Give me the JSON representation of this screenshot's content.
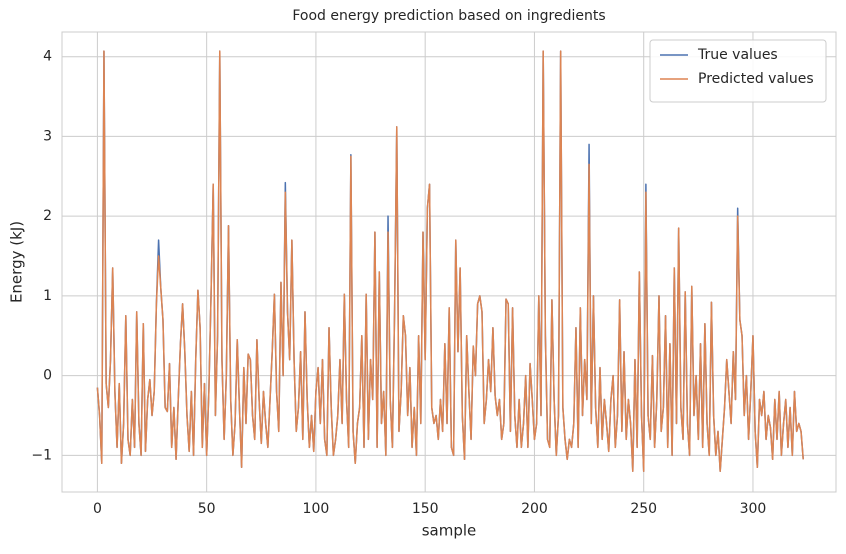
{
  "chart_data": {
    "type": "line",
    "title": "Food energy prediction based on ingredients",
    "x_label": "sample",
    "y_label": "Energy (kJ)",
    "xlim": [
      -16.2,
      338
    ],
    "ylim": [
      -1.46,
      4.31
    ],
    "xticks": [
      0,
      50,
      100,
      150,
      200,
      250,
      300
    ],
    "yticks": [
      {
        "value": -1,
        "label": "−1"
      },
      0,
      1,
      2,
      3,
      4
    ],
    "grid": true,
    "legend": "upper right",
    "x": [
      0,
      1,
      2,
      3,
      4,
      5,
      6,
      7,
      8,
      9,
      10,
      11,
      12,
      13,
      14,
      15,
      16,
      17,
      18,
      19,
      20,
      21,
      22,
      23,
      24,
      25,
      26,
      27,
      28,
      29,
      30,
      31,
      32,
      33,
      34,
      35,
      36,
      37,
      38,
      39,
      40,
      41,
      42,
      43,
      44,
      45,
      46,
      47,
      48,
      49,
      50,
      51,
      52,
      53,
      54,
      55,
      56,
      57,
      58,
      59,
      60,
      61,
      62,
      63,
      64,
      65,
      66,
      67,
      68,
      69,
      70,
      71,
      72,
      73,
      74,
      75,
      76,
      77,
      78,
      79,
      80,
      81,
      82,
      83,
      84,
      85,
      86,
      87,
      88,
      89,
      90,
      91,
      92,
      93,
      94,
      95,
      96,
      97,
      98,
      99,
      100,
      101,
      102,
      103,
      104,
      105,
      106,
      107,
      108,
      109,
      110,
      111,
      112,
      113,
      114,
      115,
      116,
      117,
      118,
      119,
      120,
      121,
      122,
      123,
      124,
      125,
      126,
      127,
      128,
      129,
      130,
      131,
      132,
      133,
      134,
      135,
      136,
      137,
      138,
      139,
      140,
      141,
      142,
      143,
      144,
      145,
      146,
      147,
      148,
      149,
      150,
      151,
      152,
      153,
      154,
      155,
      156,
      157,
      158,
      159,
      160,
      161,
      162,
      163,
      164,
      165,
      166,
      167,
      168,
      169,
      170,
      171,
      172,
      173,
      174,
      175,
      176,
      177,
      178,
      179,
      180,
      181,
      182,
      183,
      184,
      185,
      186,
      187,
      188,
      189,
      190,
      191,
      192,
      193,
      194,
      195,
      196,
      197,
      198,
      199,
      200,
      201,
      202,
      203,
      204,
      205,
      206,
      207,
      208,
      209,
      210,
      211,
      212,
      213,
      214,
      215,
      216,
      217,
      218,
      219,
      220,
      221,
      222,
      223,
      224,
      225,
      226,
      227,
      228,
      229,
      230,
      231,
      232,
      233,
      234,
      235,
      236,
      237,
      238,
      239,
      240,
      241,
      242,
      243,
      244,
      245,
      246,
      247,
      248,
      249,
      250,
      251,
      252,
      253,
      254,
      255,
      256,
      257,
      258,
      259,
      260,
      261,
      262,
      263,
      264,
      265,
      266,
      267,
      268,
      269,
      270,
      271,
      272,
      273,
      274,
      275,
      276,
      277,
      278,
      279,
      280,
      281,
      282,
      283,
      284,
      285,
      286,
      287,
      288,
      289,
      290,
      291,
      292,
      293,
      294,
      295,
      296,
      297,
      298,
      299,
      300,
      301,
      302,
      303,
      304,
      305,
      306,
      307,
      308,
      309,
      310,
      311,
      312,
      313,
      314,
      315,
      316,
      317,
      318,
      319,
      320,
      321,
      322,
      323
    ],
    "series": [
      {
        "name": "True values",
        "color": "#4c72b0",
        "values": [
          -0.15,
          -0.5,
          -1.1,
          4.07,
          -0.1,
          -0.4,
          0.2,
          1.35,
          -0.2,
          -0.9,
          -0.1,
          -1.1,
          -0.6,
          0.75,
          -0.8,
          -1.0,
          -0.3,
          -0.9,
          0.8,
          -0.6,
          -1.0,
          0.65,
          -0.95,
          -0.3,
          -0.05,
          -0.5,
          -0.2,
          0.9,
          1.7,
          1.1,
          0.7,
          -0.4,
          -0.45,
          0.15,
          -0.9,
          -0.4,
          -1.05,
          -0.3,
          0.4,
          0.9,
          0.3,
          -0.5,
          -0.95,
          -0.2,
          -1.0,
          0.2,
          1.07,
          0.6,
          -0.9,
          -0.1,
          -1.0,
          -0.2,
          1.0,
          2.4,
          -0.5,
          0.5,
          4.07,
          0.2,
          -0.8,
          0.0,
          1.88,
          -0.3,
          -1.0,
          -0.6,
          0.45,
          -0.4,
          -1.15,
          0.1,
          -0.6,
          0.27,
          0.2,
          -0.5,
          -0.8,
          0.45,
          -0.3,
          -0.85,
          -0.2,
          -0.6,
          -0.9,
          -0.3,
          0.3,
          1.02,
          -0.2,
          -0.7,
          1.17,
          0.0,
          2.42,
          0.8,
          0.2,
          1.7,
          0.2,
          -0.7,
          -0.4,
          0.3,
          -0.8,
          0.8,
          -0.3,
          -0.9,
          -0.5,
          -0.95,
          -0.2,
          0.1,
          -0.6,
          0.2,
          -0.8,
          -1.0,
          0.6,
          -0.4,
          -1.0,
          -0.8,
          -0.5,
          0.2,
          -0.6,
          1.02,
          -0.3,
          -0.9,
          2.77,
          -0.7,
          -1.1,
          -0.6,
          -0.4,
          0.5,
          -0.9,
          1.02,
          -0.8,
          0.2,
          -0.3,
          1.8,
          -0.9,
          1.3,
          -0.6,
          -0.2,
          -1.0,
          2.0,
          -0.3,
          -0.9,
          0.8,
          3.12,
          -0.7,
          -0.2,
          0.75,
          0.5,
          -0.5,
          0.1,
          -0.9,
          -0.4,
          -1.0,
          0.5,
          -0.6,
          1.8,
          0.2,
          2.1,
          2.4,
          -0.4,
          -0.6,
          -0.5,
          -0.8,
          -0.3,
          -0.7,
          0.4,
          -0.6,
          0.85,
          -0.9,
          -1.0,
          1.7,
          0.3,
          1.35,
          -0.5,
          -1.05,
          0.5,
          -0.2,
          -0.8,
          0.37,
          0.0,
          0.9,
          1.0,
          0.8,
          -0.6,
          -0.3,
          0.2,
          -0.2,
          0.6,
          -0.25,
          -0.5,
          -0.3,
          -0.8,
          -0.6,
          0.96,
          0.9,
          -0.7,
          0.85,
          -0.5,
          -0.9,
          -0.3,
          -0.9,
          -0.6,
          0.0,
          -0.9,
          0.15,
          -0.3,
          -0.8,
          -0.6,
          1.0,
          -0.5,
          4.07,
          0.5,
          -0.8,
          -0.9,
          0.95,
          -0.3,
          -1.0,
          -0.5,
          4.07,
          -0.4,
          -0.8,
          -1.05,
          -0.8,
          -0.9,
          -0.6,
          0.6,
          -0.9,
          0.85,
          -0.5,
          0.2,
          -0.3,
          2.9,
          -0.6,
          1.0,
          -0.4,
          -0.9,
          0.1,
          -0.8,
          -0.3,
          -0.6,
          -0.95,
          -0.3,
          0.0,
          -0.9,
          -0.5,
          0.95,
          -0.7,
          0.3,
          -0.8,
          -0.3,
          -0.6,
          -1.2,
          0.2,
          -0.9,
          1.3,
          -0.5,
          -1.2,
          2.4,
          -0.5,
          -0.8,
          0.25,
          -0.9,
          -0.3,
          1.0,
          -0.7,
          -0.4,
          0.75,
          -0.9,
          0.4,
          -1.0,
          1.35,
          -0.6,
          1.85,
          -0.4,
          -0.8,
          1.05,
          -0.6,
          -1.0,
          1.12,
          -0.5,
          0.0,
          -0.8,
          0.4,
          -0.9,
          0.65,
          -0.6,
          -1.0,
          0.92,
          -0.5,
          -1.0,
          -0.7,
          -1.2,
          -0.8,
          -0.4,
          0.2,
          -0.2,
          -0.6,
          0.3,
          -0.3,
          2.1,
          0.7,
          0.5,
          -0.5,
          0.0,
          -0.8,
          -0.2,
          0.5,
          -0.7,
          -1.15,
          -0.3,
          -0.5,
          -0.2,
          -0.8,
          -0.5,
          -0.65,
          -1.05,
          -0.3,
          -0.8,
          -0.2,
          -1.0,
          -0.6,
          -0.3,
          -0.9,
          -0.4,
          -1.0,
          -0.2,
          -0.7,
          -0.6,
          -0.7,
          -1.05
        ]
      },
      {
        "name": "Predicted values",
        "color": "#dd8452",
        "values": [
          -0.15,
          -0.5,
          -1.1,
          4.07,
          -0.1,
          -0.4,
          0.2,
          1.35,
          -0.2,
          -0.9,
          -0.1,
          -1.1,
          -0.6,
          0.75,
          -0.8,
          -1.0,
          -0.3,
          -0.9,
          0.8,
          -0.6,
          -1.0,
          0.65,
          -0.95,
          -0.3,
          -0.05,
          -0.5,
          -0.2,
          0.9,
          1.5,
          1.1,
          0.7,
          -0.4,
          -0.45,
          0.15,
          -0.9,
          -0.4,
          -1.05,
          -0.3,
          0.4,
          0.9,
          0.3,
          -0.5,
          -0.95,
          -0.2,
          -1.0,
          0.2,
          1.07,
          0.6,
          -0.9,
          -0.1,
          -1.0,
          -0.2,
          1.0,
          2.4,
          -0.5,
          0.5,
          4.07,
          0.2,
          -0.8,
          0.0,
          1.88,
          -0.3,
          -1.0,
          -0.6,
          0.45,
          -0.4,
          -1.15,
          0.1,
          -0.6,
          0.27,
          0.2,
          -0.5,
          -0.8,
          0.45,
          -0.3,
          -0.85,
          -0.2,
          -0.6,
          -0.9,
          -0.3,
          0.3,
          1.02,
          -0.2,
          -0.7,
          1.17,
          0.0,
          2.3,
          0.8,
          0.2,
          1.7,
          0.2,
          -0.7,
          -0.4,
          0.3,
          -0.8,
          0.8,
          -0.3,
          -0.9,
          -0.5,
          -0.95,
          -0.2,
          0.1,
          -0.6,
          0.2,
          -0.8,
          -1.0,
          0.6,
          -0.4,
          -1.0,
          -0.8,
          -0.5,
          0.2,
          -0.6,
          1.02,
          -0.3,
          -0.9,
          2.75,
          -0.7,
          -1.1,
          -0.6,
          -0.4,
          0.5,
          -0.9,
          1.02,
          -0.8,
          0.2,
          -0.3,
          1.8,
          -0.9,
          1.3,
          -0.6,
          -0.2,
          -1.0,
          1.8,
          -0.3,
          -0.9,
          0.8,
          3.12,
          -0.7,
          -0.2,
          0.75,
          0.5,
          -0.5,
          0.1,
          -0.9,
          -0.4,
          -1.0,
          0.5,
          -0.6,
          1.8,
          0.2,
          2.1,
          2.4,
          -0.4,
          -0.6,
          -0.5,
          -0.8,
          -0.3,
          -0.7,
          0.4,
          -0.6,
          0.85,
          -0.9,
          -1.0,
          1.7,
          0.3,
          1.35,
          -0.5,
          -1.05,
          0.5,
          -0.2,
          -0.8,
          0.37,
          0.0,
          0.9,
          1.0,
          0.8,
          -0.6,
          -0.3,
          0.2,
          -0.2,
          0.6,
          -0.25,
          -0.5,
          -0.3,
          -0.8,
          -0.6,
          0.96,
          0.9,
          -0.7,
          0.85,
          -0.5,
          -0.9,
          -0.3,
          -0.9,
          -0.6,
          0.0,
          -0.9,
          0.15,
          -0.3,
          -0.8,
          -0.6,
          1.0,
          -0.5,
          4.07,
          0.5,
          -0.8,
          -0.9,
          0.95,
          -0.3,
          -1.0,
          -0.5,
          4.07,
          -0.4,
          -0.8,
          -1.05,
          -0.8,
          -0.9,
          -0.6,
          0.6,
          -0.9,
          0.85,
          -0.5,
          0.2,
          -0.3,
          2.65,
          -0.6,
          1.0,
          -0.4,
          -0.9,
          0.1,
          -0.8,
          -0.3,
          -0.6,
          -0.95,
          -0.3,
          0.0,
          -0.9,
          -0.5,
          0.95,
          -0.7,
          0.3,
          -0.8,
          -0.3,
          -0.6,
          -1.2,
          0.2,
          -0.9,
          1.3,
          -0.5,
          -1.2,
          2.3,
          -0.5,
          -0.8,
          0.25,
          -0.9,
          -0.3,
          1.0,
          -0.7,
          -0.4,
          0.75,
          -0.9,
          0.4,
          -1.0,
          1.35,
          -0.6,
          1.85,
          -0.4,
          -0.8,
          1.05,
          -0.6,
          -1.0,
          1.12,
          -0.5,
          0.0,
          -0.8,
          0.4,
          -0.9,
          0.65,
          -0.6,
          -1.0,
          0.92,
          -0.5,
          -1.0,
          -0.7,
          -1.2,
          -0.8,
          -0.4,
          0.2,
          -0.2,
          -0.6,
          0.3,
          -0.3,
          2.0,
          0.7,
          0.5,
          -0.5,
          0.0,
          -0.8,
          -0.2,
          0.5,
          -0.7,
          -1.15,
          -0.3,
          -0.5,
          -0.2,
          -0.8,
          -0.5,
          -0.65,
          -1.05,
          -0.3,
          -0.8,
          -0.2,
          -1.0,
          -0.6,
          -0.3,
          -0.9,
          -0.4,
          -1.0,
          -0.2,
          -0.7,
          -0.6,
          -0.7,
          -1.05
        ]
      }
    ]
  }
}
